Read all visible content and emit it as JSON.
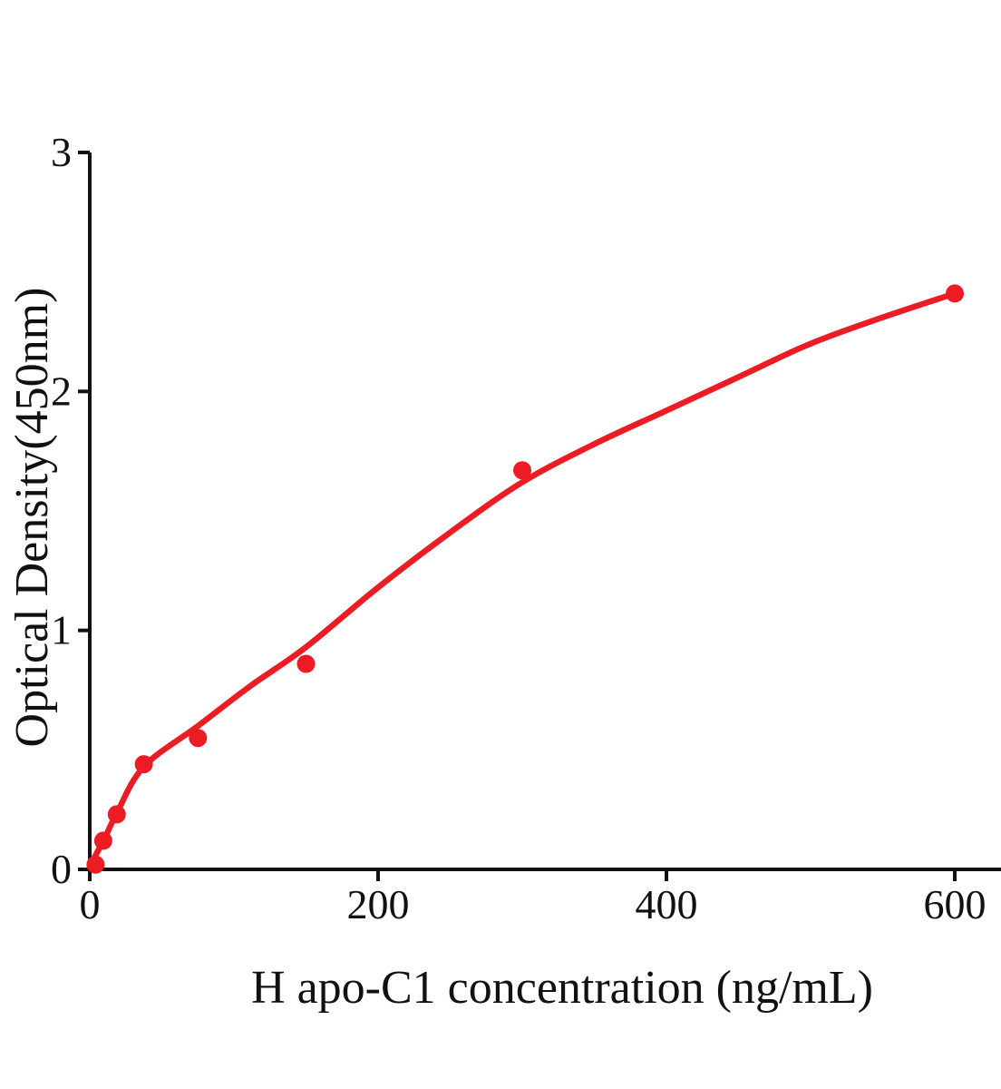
{
  "figure": {
    "background": "#ffffff",
    "accent_color": "#ec1c24",
    "axis_color": "#111111"
  },
  "chart_data": {
    "type": "scatter",
    "title": "",
    "xlabel": "H apo-C1 concentration (ng/mL)",
    "ylabel": "Optical Density(450nm)",
    "xlim": [
      0,
      600
    ],
    "ylim": [
      0,
      3
    ],
    "x_ticks": [
      0,
      200,
      400,
      600
    ],
    "x_tick_labels": [
      "0",
      "200",
      "400",
      "600"
    ],
    "y_ticks": [
      0,
      1,
      2,
      3
    ],
    "y_tick_labels": [
      "0",
      "1",
      "2",
      "3"
    ],
    "grid": false,
    "legend": "none",
    "series": [
      {
        "name": "standard points",
        "type": "scatter",
        "marker": "circle",
        "marker_radius": 10,
        "color": "#ec1c24",
        "points": [
          [
            4,
            0.02
          ],
          [
            9.375,
            0.12
          ],
          [
            18.75,
            0.23
          ],
          [
            37.5,
            0.44
          ],
          [
            75,
            0.55
          ],
          [
            150,
            0.86
          ],
          [
            300,
            1.67
          ],
          [
            600,
            2.41
          ]
        ]
      },
      {
        "name": "fitted curve",
        "type": "line",
        "stroke_width": 6.5,
        "color": "#ec1c24",
        "points": [
          [
            0,
            0.01
          ],
          [
            5,
            0.07
          ],
          [
            10,
            0.125
          ],
          [
            18.75,
            0.235
          ],
          [
            37.5,
            0.43
          ],
          [
            75,
            0.6
          ],
          [
            112,
            0.77
          ],
          [
            150,
            0.93
          ],
          [
            200,
            1.18
          ],
          [
            250,
            1.41
          ],
          [
            300,
            1.62
          ],
          [
            350,
            1.78
          ],
          [
            400,
            1.92
          ],
          [
            450,
            2.06
          ],
          [
            500,
            2.2
          ],
          [
            550,
            2.31
          ],
          [
            600,
            2.41
          ]
        ]
      }
    ]
  }
}
